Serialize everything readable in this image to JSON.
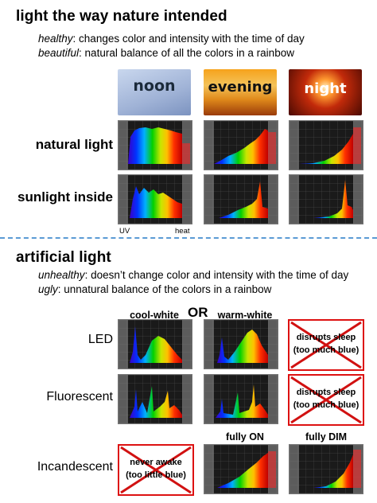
{
  "section1": {
    "title": "light the way nature intended",
    "line1_term": "healthy",
    "line1_rest": ": changes color and intensity with the time of day",
    "line2_term": "beautiful",
    "line2_rest": ":  natural balance of all the colors in a rainbow",
    "columns": [
      "noon",
      "evening",
      "night"
    ],
    "rows": [
      "natural light",
      "sunlight inside"
    ],
    "uv_label": "UV",
    "heat_label": "heat"
  },
  "section2": {
    "title": "artificial light",
    "line1_term": "unhealthy",
    "line1_rest": ":  doesn’t change color and intensity with the time of day",
    "line2_term": "ugly",
    "line2_rest": ": unnatural balance of the colors in a rainbow",
    "col_cool": "cool-white",
    "col_or": "OR",
    "col_warm": "warm-white",
    "rows": [
      "LED",
      "Fluorescent",
      "Incandescent"
    ],
    "led_warning": [
      "disrupts  sleep",
      "(too much blue)"
    ],
    "fluor_warning": [
      "disrupts  sleep",
      "(too much blue)"
    ],
    "incand_warning": [
      "never awake",
      "(too little blue)"
    ],
    "col_fully_on": "fully ON",
    "col_fully_dim": "fully DIM"
  },
  "colors": {
    "divider": "#5b9bd5",
    "cross": "#d11111"
  }
}
